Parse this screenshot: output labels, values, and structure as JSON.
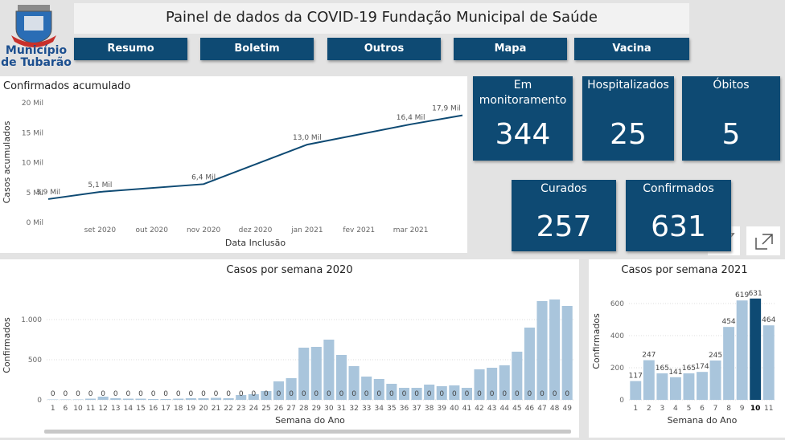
{
  "logo": {
    "line1": "Município",
    "line2": "de Tubarão"
  },
  "header": {
    "title": "Painel de dados da  COVID-19 Fundação Municipal de Saúde"
  },
  "nav": [
    "Resumo",
    "Boletim",
    "Outros",
    "Mapa",
    "Vacina"
  ],
  "kpis": [
    {
      "label": "Em monitoramento",
      "value": 344
    },
    {
      "label": "Hospitalizados",
      "value": 25
    },
    {
      "label": "Óbitos",
      "value": 5
    },
    {
      "label": "Curados",
      "value": 257
    },
    {
      "label": "Confirmados",
      "value": 631
    }
  ],
  "chart_data": [
    {
      "type": "line",
      "title": "Confirmados acumulado",
      "y_label": "Casos acumulados",
      "x_label": "Data Inclusão",
      "color": "#0e4a73",
      "x": [
        "2020-08",
        "2020-09",
        "2020-11",
        "2021-01",
        "2021-03",
        "2021-04"
      ],
      "values": [
        3.9,
        5.1,
        6.4,
        13.0,
        16.4,
        17.9
      ],
      "value_labels": [
        "3,9 Mil",
        "5,1 Mil",
        "6,4 Mil",
        "13,0 Mil",
        "16,4 Mil",
        "17,9 Mil"
      ],
      "xlim": [
        "2020-08",
        "2021-04"
      ],
      "xticks": [
        {
          "value": "2020-09",
          "label": "set 2020"
        },
        {
          "value": "2020-10",
          "label": "out 2020"
        },
        {
          "value": "2020-11",
          "label": "nov 2020"
        },
        {
          "value": "2020-12",
          "label": "dez 2020"
        },
        {
          "value": "2021-01",
          "label": "jan 2021"
        },
        {
          "value": "2021-02",
          "label": "fev 2021"
        },
        {
          "value": "2021-03",
          "label": "mar 2021"
        }
      ],
      "ylim": [
        0,
        20
      ],
      "yticks": [
        {
          "value": 0,
          "label": "0 Mil"
        },
        {
          "value": 5,
          "label": "5 Mil"
        },
        {
          "value": 10,
          "label": "10 Mil"
        },
        {
          "value": 15,
          "label": "15 Mil"
        },
        {
          "value": 20,
          "label": "20 Mil"
        }
      ],
      "grid": false
    },
    {
      "type": "bar",
      "title": "Casos por semana 2020",
      "y_label": "Confirmados",
      "x_label": "Semana do Ano",
      "categories": [
        "1",
        "6",
        "10",
        "11",
        "12",
        "13",
        "14",
        "15",
        "16",
        "17",
        "18",
        "19",
        "20",
        "21",
        "22",
        "23",
        "24",
        "25",
        "26",
        "27",
        "28",
        "29",
        "30",
        "31",
        "32",
        "33",
        "34",
        "35",
        "36",
        "37",
        "38",
        "39",
        "40",
        "41",
        "42",
        "43",
        "44",
        "45",
        "46",
        "47",
        "48",
        "49"
      ],
      "series": [
        {
          "color": "#a9c5dc",
          "values": [
            5,
            5,
            5,
            15,
            40,
            20,
            15,
            15,
            10,
            10,
            15,
            20,
            20,
            25,
            20,
            60,
            70,
            110,
            230,
            270,
            650,
            660,
            750,
            560,
            420,
            290,
            260,
            200,
            150,
            150,
            190,
            170,
            180,
            150,
            380,
            400,
            430,
            600,
            900,
            1230,
            1250,
            1170
          ]
        },
        {
          "values": [
            0,
            0,
            0,
            0,
            0,
            0,
            0,
            0,
            0,
            0,
            0,
            0,
            0,
            0,
            0,
            0,
            0,
            0,
            0,
            0,
            0,
            0,
            0,
            0,
            0,
            0,
            0,
            0,
            0,
            0,
            0,
            0,
            0,
            0,
            0,
            0,
            0,
            0,
            0,
            0,
            0,
            0
          ]
        }
      ],
      "ylim": [
        0,
        1300
      ],
      "yticks": [
        0,
        500,
        {
          "value": 1000,
          "label": "1.000"
        }
      ],
      "grid": true
    },
    {
      "type": "bar",
      "title": "Casos por semana 2021",
      "y_label": "Confirmados",
      "x_label": "Semana do Ano",
      "categories": [
        "1",
        "2",
        "3",
        "4",
        "5",
        "6",
        "7",
        "8",
        "9",
        "10",
        "11"
      ],
      "values": [
        117,
        247,
        165,
        141,
        165,
        174,
        245,
        454,
        619,
        631,
        464
      ],
      "colors": [
        "#a9c5dc",
        "#a9c5dc",
        "#a9c5dc",
        "#a9c5dc",
        "#a9c5dc",
        "#a9c5dc",
        "#a9c5dc",
        "#a9c5dc",
        "#a9c5dc",
        "#0e4a73",
        "#a9c5dc"
      ],
      "ylim": [
        0,
        700
      ],
      "yticks": [
        0,
        200,
        400,
        600
      ],
      "grid": true
    }
  ]
}
